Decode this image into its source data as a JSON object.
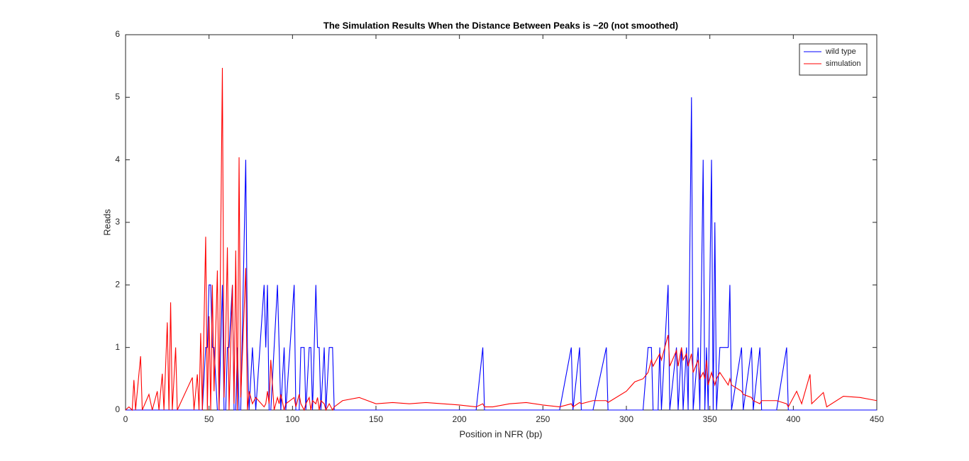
{
  "chart_data": {
    "type": "line",
    "title": "The Simulation Results When the Distance Between Peaks is ~20 (not smoothed)",
    "x_label": "Position in NFR (bp)",
    "y_label": "Reads",
    "x": [
      0,
      2,
      4,
      5,
      6,
      9,
      10,
      14,
      16,
      19,
      20,
      22,
      23,
      25,
      26,
      27,
      28,
      30,
      31,
      40,
      41,
      43,
      44,
      45,
      46,
      48,
      49,
      50,
      51,
      52,
      53,
      55,
      56,
      58,
      59,
      60,
      61,
      62,
      64,
      65,
      66,
      67,
      68,
      69,
      72,
      73,
      74,
      76,
      78,
      83,
      84,
      85,
      86,
      87,
      89,
      91,
      92,
      93,
      95,
      96,
      101,
      102,
      104,
      105,
      107,
      108,
      110,
      111,
      112,
      114,
      115,
      116,
      117,
      119,
      120,
      122,
      124,
      125,
      130,
      140,
      150,
      160,
      170,
      180,
      190,
      200,
      210,
      214,
      215,
      220,
      230,
      240,
      250,
      260,
      267,
      268,
      272,
      273,
      280,
      288,
      289,
      300,
      305,
      310,
      313,
      315,
      316,
      319,
      320,
      321,
      325,
      326,
      330,
      331,
      333,
      334,
      336,
      337,
      339,
      340,
      343,
      344,
      346,
      347,
      348,
      349,
      351,
      352,
      353,
      354,
      356,
      361,
      362,
      363,
      369,
      370,
      375,
      376,
      380,
      381,
      390,
      396,
      397,
      402,
      405,
      410,
      411,
      418,
      420,
      430,
      440,
      450
    ],
    "series": [
      {
        "name": "wild type",
        "color": "#0000ff",
        "values": [
          0,
          0,
          0,
          0,
          0,
          0,
          0,
          0,
          0,
          0,
          0,
          0,
          0,
          0,
          0,
          0,
          0,
          0,
          0,
          0,
          0,
          0,
          0,
          0,
          0,
          1,
          1,
          2,
          2,
          1,
          1,
          0,
          0,
          2,
          0,
          0,
          1,
          1,
          2,
          0,
          0,
          1,
          0,
          0,
          4,
          1,
          0,
          1,
          0,
          2,
          1,
          2,
          0,
          0,
          1,
          2,
          1,
          0,
          1,
          0,
          2,
          0,
          0,
          1,
          1,
          0,
          1,
          1,
          0,
          2,
          1,
          1,
          0,
          1,
          0,
          1,
          1,
          0,
          0,
          0,
          0,
          0,
          0,
          0,
          0,
          0,
          0,
          1,
          0,
          0,
          0,
          0,
          0,
          0,
          1,
          0,
          1,
          0,
          0,
          1,
          0,
          0,
          0,
          0,
          1,
          1,
          0,
          0,
          1,
          0,
          2,
          0,
          1,
          0,
          1,
          0,
          1,
          0,
          5,
          0,
          1,
          0,
          4,
          0,
          1,
          0,
          4,
          0,
          3,
          0,
          1,
          1,
          2,
          0,
          1,
          0,
          1,
          0,
          1,
          0,
          0,
          1,
          0,
          0,
          0,
          0,
          0,
          0,
          0,
          0,
          0,
          0
        ]
      },
      {
        "name": "simulation",
        "color": "#ff0000",
        "values": [
          0,
          0.05,
          0,
          0.48,
          0,
          0.86,
          0,
          0.25,
          0,
          0.3,
          0,
          0.58,
          0,
          1.4,
          0,
          1.72,
          0,
          1,
          0,
          0.52,
          0,
          0.57,
          0,
          1.23,
          0,
          2.77,
          0,
          1.5,
          0,
          2,
          0.3,
          2.23,
          0,
          5.47,
          0.2,
          1.2,
          2.6,
          0,
          2,
          0.1,
          2.55,
          0,
          4.04,
          0.2,
          2.27,
          0,
          0.3,
          0.1,
          0.2,
          0.05,
          0.1,
          0.3,
          0.1,
          0.8,
          0,
          0.2,
          0.1,
          0.25,
          0,
          0.1,
          0.2,
          0.05,
          0.25,
          0.1,
          0,
          0.1,
          0.2,
          0,
          0.15,
          0.1,
          0.2,
          0,
          0.15,
          0.1,
          0,
          0.1,
          0,
          0.05,
          0.15,
          0.2,
          0.1,
          0.12,
          0.1,
          0.12,
          0.1,
          0.08,
          0.05,
          0.1,
          0.05,
          0.05,
          0.1,
          0.12,
          0.08,
          0.05,
          0.1,
          0.05,
          0.12,
          0.1,
          0.15,
          0.15,
          0.12,
          0.3,
          0.45,
          0.5,
          0.6,
          0.8,
          0.7,
          0.85,
          0.9,
          0.8,
          1.2,
          0.7,
          0.95,
          0.7,
          1,
          0.8,
          0.9,
          0.7,
          0.9,
          0.6,
          0.8,
          0.5,
          0.6,
          0.5,
          0.8,
          0.4,
          0.6,
          0.5,
          0.4,
          0.5,
          0.6,
          0.4,
          0.5,
          0.4,
          0.3,
          0.25,
          0.2,
          0.15,
          0.1,
          0.15,
          0.15,
          0.1,
          0.05,
          0.3,
          0.1,
          0.57,
          0.1,
          0.28,
          0.05,
          0.22,
          0.2,
          0.15
        ]
      }
    ],
    "xlim": [
      0,
      450
    ],
    "xticks": [
      0,
      50,
      100,
      150,
      200,
      250,
      300,
      350,
      400,
      450
    ],
    "ylim": [
      0,
      6
    ],
    "yticks": [
      0,
      1,
      2,
      3,
      4,
      5,
      6
    ],
    "legend": "upper right"
  }
}
